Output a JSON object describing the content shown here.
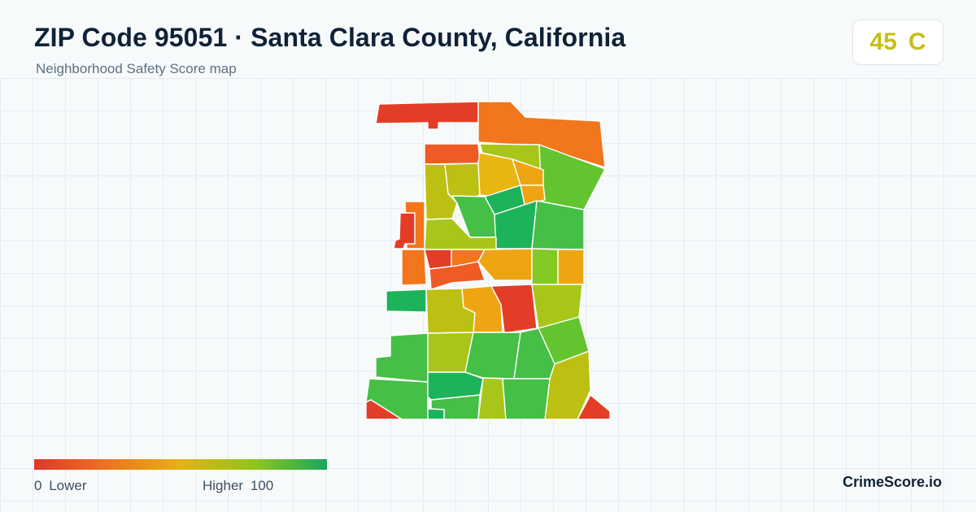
{
  "header": {
    "title": "ZIP Code 95051 · Santa Clara County, California",
    "subtitle": "Neighborhood Safety Score map"
  },
  "score": {
    "value": "45",
    "grade": "C",
    "color": "#c9bd17"
  },
  "legend": {
    "low_value": "0",
    "low_label": "Lower",
    "high_label": "Higher",
    "high_value": "100",
    "colors": [
      "#e0362b",
      "#ef7321",
      "#e6b20e",
      "#8fc61d",
      "#1aa65c"
    ]
  },
  "footer": {
    "brand": "CrimeScore.io"
  },
  "map": {
    "region_color_scale": {
      "red": "#e43d27",
      "orange_red": "#ef5a25",
      "orange": "#f2761c",
      "amber": "#efa512",
      "yellow": "#e9b510",
      "olive": "#bcc012",
      "yellow_green": "#a8c61a",
      "lime": "#82c923",
      "light_green": "#63c42f",
      "green": "#45bf45",
      "deep_green": "#1db35a"
    }
  }
}
